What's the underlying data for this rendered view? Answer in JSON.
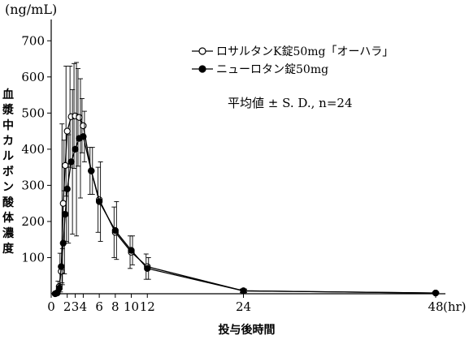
{
  "chart_data": {
    "type": "line",
    "y_unit": "(ng/mL)",
    "ylabel": "血漿中カルボン酸体濃度",
    "xlabel": "投与後時間",
    "x_unit": "(hr)",
    "stats_note": "平均値 ± S. D., n=24",
    "ylim": [
      0,
      750
    ],
    "xlim": [
      0,
      48
    ],
    "y_ticks": [
      0,
      100,
      200,
      300,
      400,
      500,
      600,
      700
    ],
    "x_ticks": [
      0,
      2,
      3,
      4,
      6,
      8,
      10,
      12,
      24,
      48
    ],
    "x_tick_labels": [
      "0",
      "2",
      "3",
      "4",
      "6",
      "8",
      "10",
      "12",
      "24",
      "48"
    ],
    "x_times": [
      0.5,
      0.75,
      1,
      1.25,
      1.5,
      1.75,
      2,
      2.5,
      3,
      3.5,
      4,
      5,
      6,
      8,
      10,
      12,
      24,
      48
    ],
    "series": [
      {
        "name": "ロサルタンK錠50mg「オーハラ」",
        "marker": "open-circle",
        "values": [
          0,
          2,
          20,
          62,
          250,
          355,
          450,
          490,
          492,
          488,
          465,
          340,
          260,
          170,
          115,
          75,
          8,
          2
        ],
        "sd": [
          0,
          5,
          15,
          50,
          220,
          70,
          180,
          140,
          145,
          135,
          75,
          65,
          90,
          70,
          45,
          35,
          5,
          2
        ]
      },
      {
        "name": "ニューロタン錠50mg",
        "marker": "filled-circle",
        "values": [
          0,
          3,
          15,
          75,
          140,
          220,
          290,
          365,
          400,
          430,
          435,
          340,
          255,
          175,
          120,
          70,
          8,
          2
        ],
        "sd": [
          0,
          5,
          10,
          50,
          85,
          75,
          150,
          200,
          240,
          165,
          70,
          65,
          110,
          80,
          40,
          30,
          5,
          2
        ]
      }
    ]
  }
}
